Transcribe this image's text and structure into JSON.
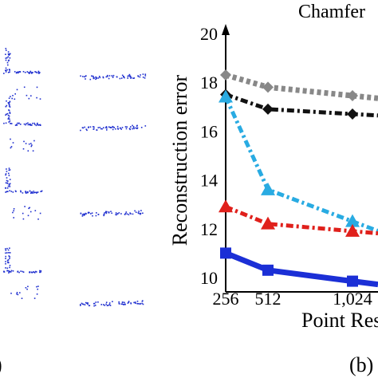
{
  "chart_data": [
    {
      "type": "scatter",
      "panel": "(a)",
      "panel_label": ")",
      "note": "partially cropped panel of blue point-cloud renderings; no axes or values",
      "color": "#1f2fcf"
    },
    {
      "type": "line",
      "panel": "(b)",
      "panel_label": "(b)",
      "title": "Chamfer",
      "xlabel": "Point Res",
      "ylabel": "Reconstruction error",
      "categories": [
        "256",
        "512",
        "1,024"
      ],
      "x": [
        256,
        512,
        1024
      ],
      "ylim": [
        9,
        20
      ],
      "yticks": [
        10,
        12,
        14,
        16,
        18,
        20
      ],
      "grid": false,
      "series": [
        {
          "color": "#888888",
          "style": "dotted-thick",
          "marker": "diamond",
          "values": [
            18.3,
            17.8,
            17.45
          ]
        },
        {
          "color": "#111111",
          "style": "dash-dot",
          "marker": "diamond",
          "values": [
            17.5,
            16.9,
            16.7
          ]
        },
        {
          "color": "#29abe2",
          "style": "dash-dot",
          "marker": "triangle",
          "values": [
            17.4,
            13.6,
            12.3
          ]
        },
        {
          "color": "#e0201b",
          "style": "dash-dot",
          "marker": "triangle",
          "values": [
            12.9,
            12.2,
            11.9
          ]
        },
        {
          "color": "#1b2fd6",
          "style": "solid",
          "marker": "square",
          "values": [
            11.0,
            10.3,
            9.85
          ]
        }
      ]
    }
  ]
}
